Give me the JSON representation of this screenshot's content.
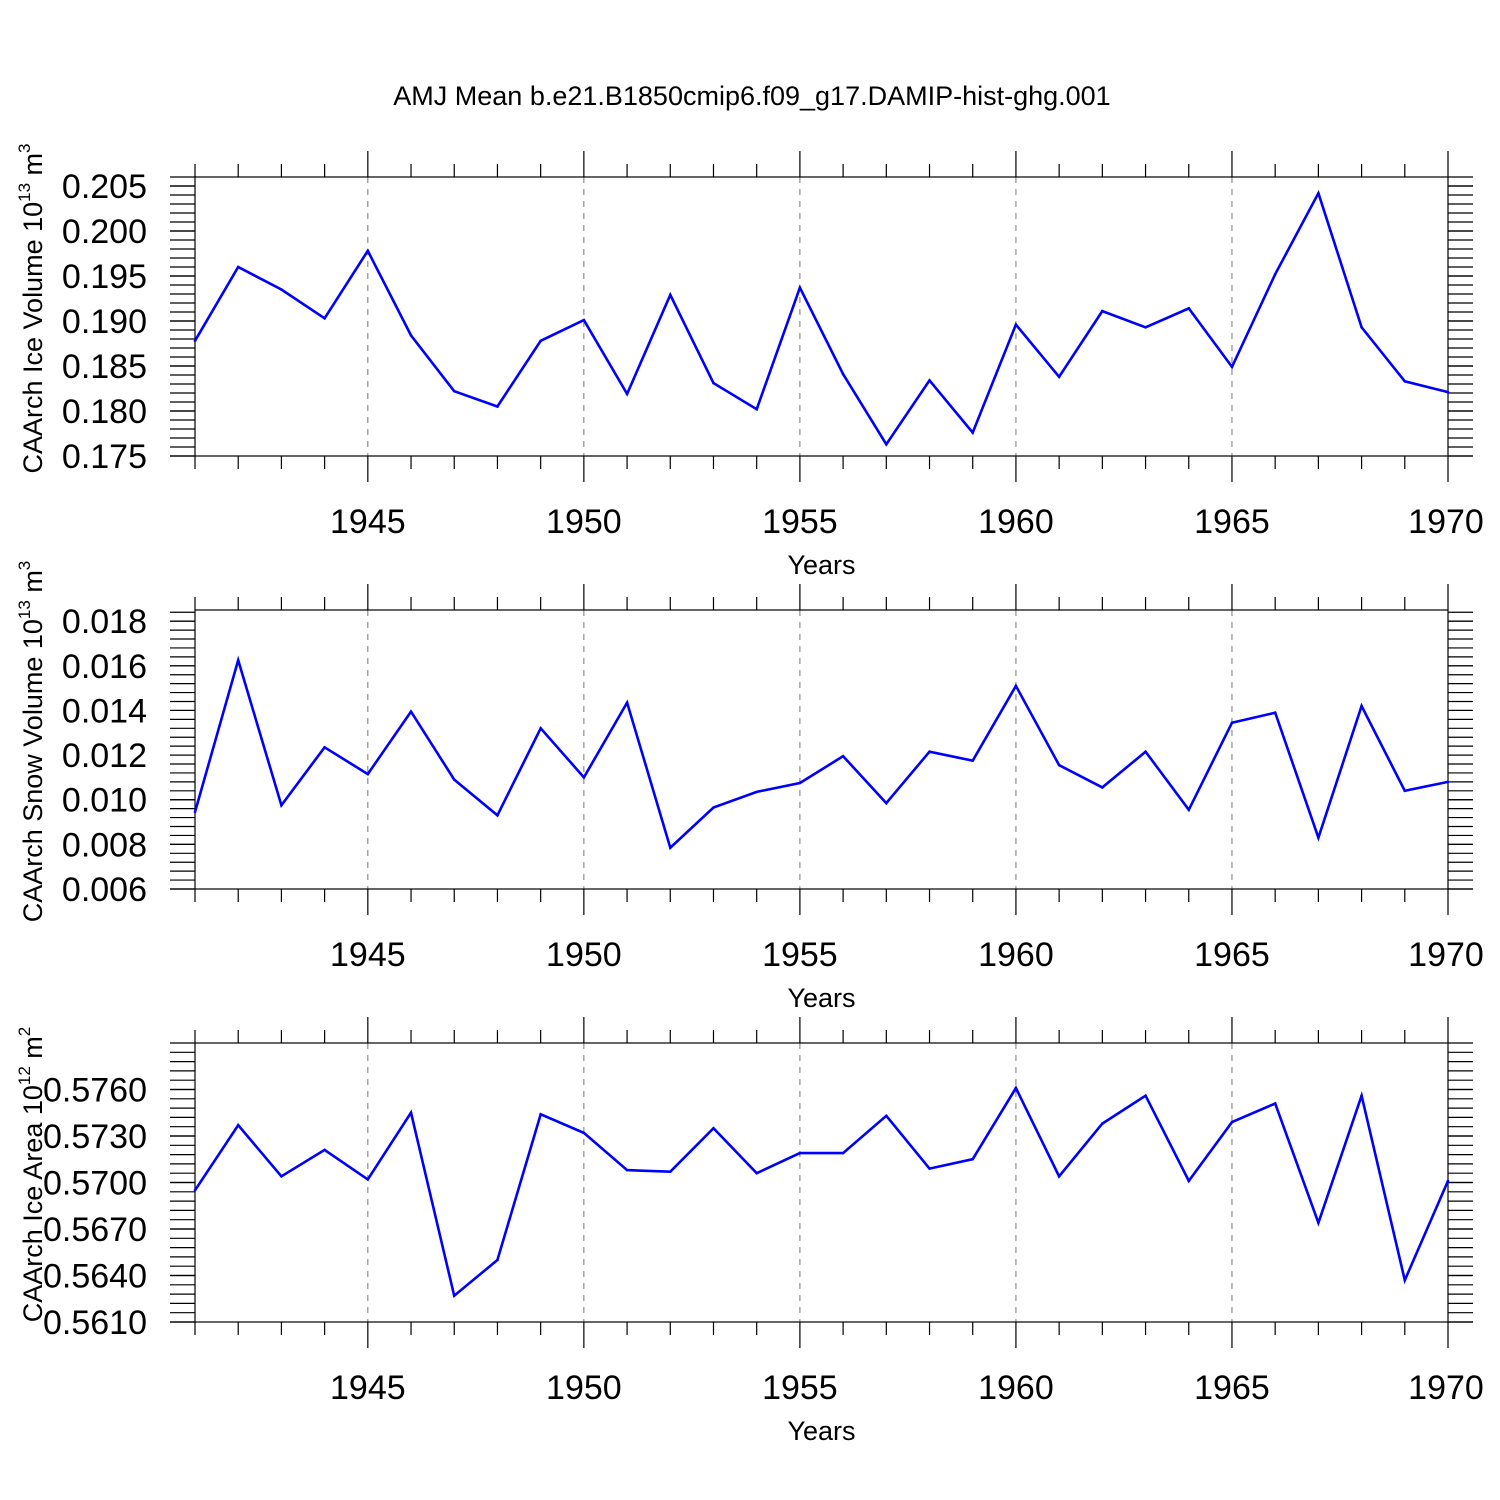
{
  "title": "AMJ Mean b.e21.B1850cmip6.f09_g17.DAMIP-hist-ghg.001",
  "line_color": "#0000ff",
  "chart_data": [
    {
      "type": "line",
      "name": "ice-volume",
      "ylabel": {
        "main": "CAArch Ice Volume 10",
        "exp": "13",
        "unit": " m",
        "unit_exp": "3"
      },
      "xlabel": "Years",
      "xlim": [
        1941,
        1970
      ],
      "ylim": [
        0.175,
        0.206
      ],
      "xticks": [
        1945,
        1950,
        1955,
        1960,
        1965,
        1970
      ],
      "yticks": [
        "0.175",
        "0.180",
        "0.185",
        "0.190",
        "0.195",
        "0.200",
        "0.205"
      ],
      "x": [
        1941,
        1942,
        1943,
        1944,
        1945,
        1946,
        1947,
        1948,
        1949,
        1950,
        1951,
        1952,
        1953,
        1954,
        1955,
        1956,
        1957,
        1958,
        1959,
        1960,
        1961,
        1962,
        1963,
        1964,
        1965,
        1966,
        1967,
        1968,
        1969,
        1970
      ],
      "values": [
        0.1878,
        0.196,
        0.1935,
        0.1903,
        0.1978,
        0.1884,
        0.1822,
        0.1805,
        0.1878,
        0.1901,
        0.1819,
        0.1929,
        0.1831,
        0.1802,
        0.1937,
        0.1841,
        0.1763,
        0.1834,
        0.1776,
        0.1896,
        0.1838,
        0.1911,
        0.1893,
        0.1914,
        0.1849,
        0.1952,
        0.2042,
        0.1893,
        0.1833,
        0.1821
      ]
    },
    {
      "type": "line",
      "name": "snow-volume",
      "ylabel": {
        "main": "CAArch Snow Volume 10",
        "exp": "13",
        "unit": " m",
        "unit_exp": "3"
      },
      "xlabel": "Years",
      "xlim": [
        1941,
        1970
      ],
      "ylim": [
        0.006,
        0.0185
      ],
      "xticks": [
        1945,
        1950,
        1955,
        1960,
        1965,
        1970
      ],
      "yticks": [
        "0.006",
        "0.008",
        "0.010",
        "0.012",
        "0.014",
        "0.016",
        "0.018"
      ],
      "x": [
        1941,
        1942,
        1943,
        1944,
        1945,
        1946,
        1947,
        1948,
        1949,
        1950,
        1951,
        1952,
        1953,
        1954,
        1955,
        1956,
        1957,
        1958,
        1959,
        1960,
        1961,
        1962,
        1963,
        1964,
        1965,
        1966,
        1967,
        1968,
        1969,
        1970
      ],
      "values": [
        0.00945,
        0.01625,
        0.00975,
        0.01235,
        0.01115,
        0.01395,
        0.0109,
        0.0093,
        0.0132,
        0.011,
        0.01435,
        0.00785,
        0.00965,
        0.01035,
        0.01075,
        0.01195,
        0.00985,
        0.01215,
        0.01175,
        0.0151,
        0.01155,
        0.01055,
        0.01215,
        0.00955,
        0.01345,
        0.0139,
        0.0083,
        0.0142,
        0.0104,
        0.0108
      ]
    },
    {
      "type": "line",
      "name": "ice-area",
      "ylabel": {
        "main": "CAArch Ice Area 10",
        "exp": "12",
        "unit": " m",
        "unit_exp": "2"
      },
      "xlabel": "Years",
      "xlim": [
        1941,
        1970
      ],
      "ylim": [
        0.561,
        0.579
      ],
      "xticks": [
        1945,
        1950,
        1955,
        1960,
        1965,
        1970
      ],
      "yticks": [
        "0.5610",
        "0.5640",
        "0.5670",
        "0.5700",
        "0.5730",
        "0.5760"
      ],
      "x": [
        1941,
        1942,
        1943,
        1944,
        1945,
        1946,
        1947,
        1948,
        1949,
        1950,
        1951,
        1952,
        1953,
        1954,
        1955,
        1956,
        1957,
        1958,
        1959,
        1960,
        1961,
        1962,
        1963,
        1964,
        1965,
        1966,
        1967,
        1968,
        1969,
        1970
      ],
      "values": [
        0.5695,
        0.5737,
        0.5704,
        0.5721,
        0.5702,
        0.5745,
        0.5627,
        0.565,
        0.5744,
        0.5732,
        0.5708,
        0.5707,
        0.5735,
        0.5706,
        0.5719,
        0.5719,
        0.5743,
        0.5709,
        0.5715,
        0.5761,
        0.5704,
        0.5738,
        0.5756,
        0.5701,
        0.5739,
        0.5751,
        0.5674,
        0.5756,
        0.5637,
        0.5701
      ]
    }
  ]
}
